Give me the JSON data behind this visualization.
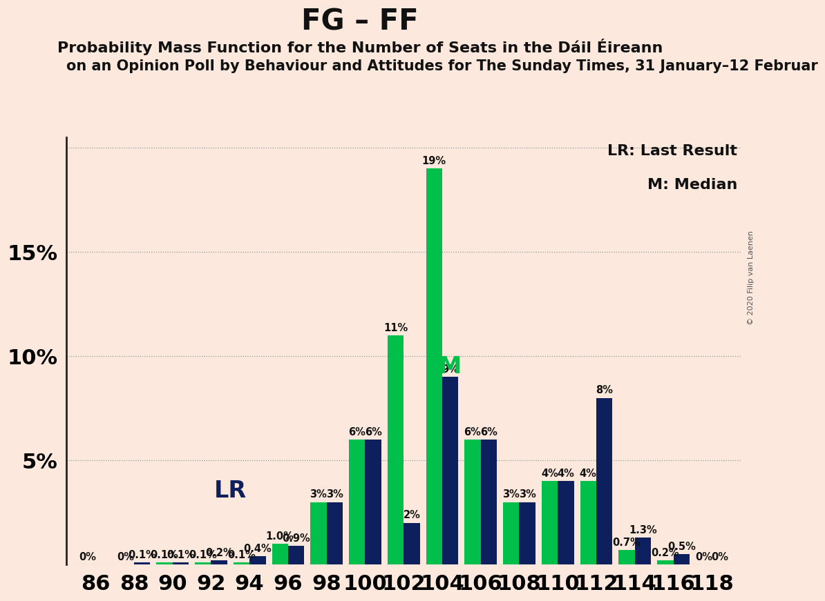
{
  "title": "FG – FF",
  "subtitle1": "Probability Mass Function for the Number of Seats in the Dáil Éireann",
  "subtitle2": "on an Opinion Poll by Behaviour and Attitudes for The Sunday Times, 31 January–12 Februar",
  "copyright": "© 2020 Filip van Laenen",
  "background_color": "#fce8dc",
  "seats": [
    86,
    88,
    90,
    92,
    94,
    96,
    98,
    100,
    102,
    104,
    106,
    108,
    110,
    112,
    114,
    116,
    118
  ],
  "fg_values": [
    0.0,
    0.0,
    0.1,
    0.1,
    0.1,
    1.0,
    3.0,
    6.0,
    11.0,
    19.0,
    6.0,
    3.0,
    4.0,
    4.0,
    0.7,
    0.2,
    0.0
  ],
  "ff_values": [
    0.0,
    0.1,
    0.1,
    0.2,
    0.4,
    0.9,
    3.0,
    6.0,
    2.0,
    9.0,
    6.0,
    3.0,
    4.0,
    8.0,
    1.3,
    0.5,
    0.0
  ],
  "fg_labels": [
    "0%",
    "0%",
    "0.1%",
    "0.1%",
    "0.1%",
    "1.0%",
    "3%",
    "6%",
    "11%",
    "19%",
    "6%",
    "3%",
    "4%",
    "4%",
    "0.7%",
    "0.2%",
    "0%"
  ],
  "ff_labels": [
    "",
    "0.1%",
    "0.1%",
    "0.2%",
    "0.4%",
    "0.9%",
    "3%",
    "6%",
    "2%",
    "9%",
    "6%",
    "3%",
    "4%",
    "8%",
    "1.3%",
    "0.5%",
    "0%"
  ],
  "fg_color": "#00c04b",
  "ff_color": "#0d1f5c",
  "lr_seat_idx": 5,
  "median_seat_idx": 9,
  "lr_label": "LR",
  "median_label": "M",
  "legend_lr": "LR: Last Result",
  "legend_m": "M: Median",
  "ylim": [
    0,
    20.5
  ],
  "bar_width": 0.42,
  "grid_color": "#999999",
  "bar_label_fontsize": 10.5,
  "title_fontsize": 30,
  "subtitle1_fontsize": 16,
  "subtitle2_fontsize": 15,
  "tick_fontsize": 22,
  "ytick_label_fontsize": 22,
  "legend_fontsize": 16,
  "lr_fontsize": 24,
  "median_fontsize": 24
}
